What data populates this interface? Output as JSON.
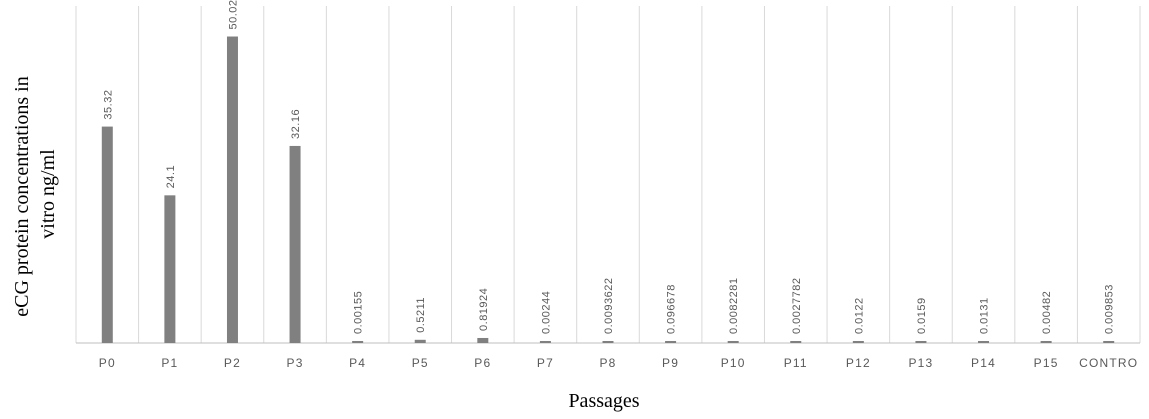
{
  "chart_data": {
    "type": "bar",
    "categories": [
      "P0",
      "P1",
      "P2",
      "P3",
      "P4",
      "P5",
      "P6",
      "P7",
      "P8",
      "P9",
      "P10",
      "P11",
      "P12",
      "P13",
      "P14",
      "P15",
      "CONTRO"
    ],
    "values": [
      35.32,
      24.1,
      50.02,
      32.16,
      0.00155,
      0.5211,
      0.81924,
      0.00244,
      0.0093622,
      0.096678,
      0.0082281,
      0.0027782,
      0.0122,
      0.0159,
      0.0131,
      0.00482,
      0.009853
    ],
    "data_labels": [
      "35.32",
      "24.1",
      "50.02",
      "32.16",
      "0.00155",
      "0.5211",
      "0.81924",
      "0.00244",
      "0.0093622",
      "0.096678",
      "0.0082281",
      "0.0027782",
      "0.0122",
      "0.0159",
      "0.0131",
      "0.00482",
      "0.009853"
    ],
    "xlabel": "Passages",
    "ylabel_lines": [
      "eCG protein concentrations in",
      "vitro ng/ml"
    ],
    "ylim": [
      0,
      55
    ],
    "grid": "vertical",
    "legend": "none",
    "colors": {
      "bar": "#808080",
      "grid": "#d9d9d9",
      "axis": "#bfbfbf"
    }
  }
}
